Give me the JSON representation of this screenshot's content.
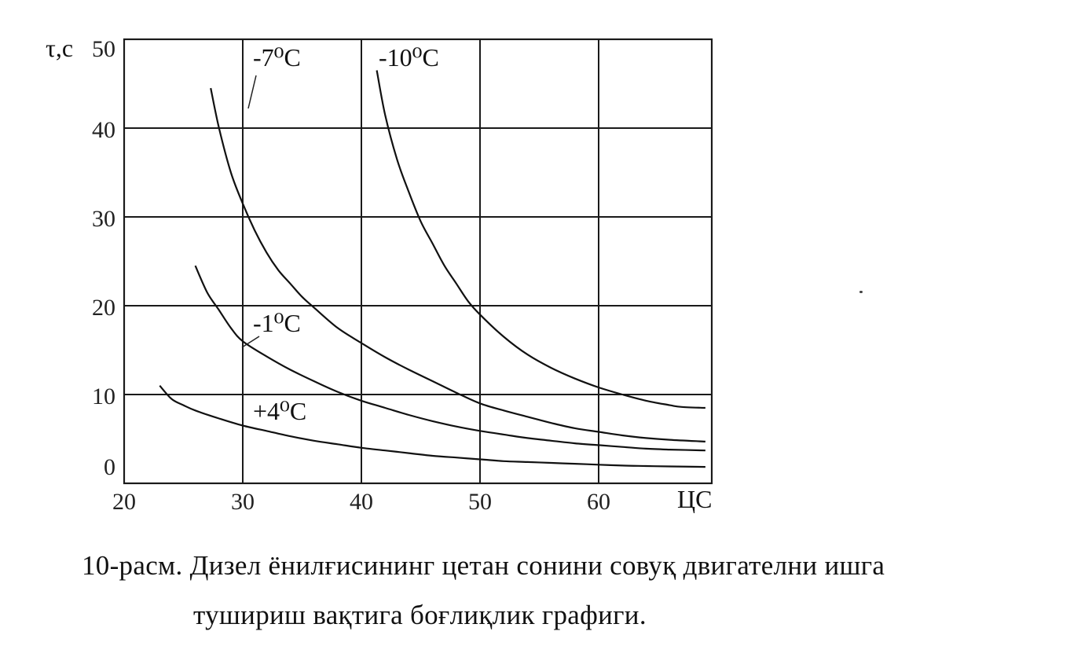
{
  "chart_data": {
    "type": "line",
    "ylabel": "τ,с",
    "xlabel": "ЦС",
    "xlim": [
      20,
      69
    ],
    "ylim": [
      0,
      50
    ],
    "x_ticks": [
      "20",
      "30",
      "40",
      "50",
      "60"
    ],
    "y_ticks": [
      "0",
      "10",
      "20",
      "30",
      "40",
      "50"
    ],
    "grid": true,
    "series": [
      {
        "name": "-10⁰С",
        "x": [
          41.3,
          42,
          43,
          44,
          45,
          46,
          47,
          48,
          49,
          50,
          52,
          54,
          56,
          58,
          60,
          62,
          64,
          66,
          67,
          69
        ],
        "y": [
          46.5,
          41.5,
          36.5,
          32.8,
          29.5,
          27,
          24.5,
          22.5,
          20.5,
          19,
          16.5,
          14.5,
          13,
          11.8,
          10.8,
          10,
          9.3,
          8.8,
          8.6,
          8.5
        ]
      },
      {
        "name": "-7⁰С",
        "x": [
          27.3,
          28,
          29,
          30,
          31,
          32,
          33,
          34,
          35,
          36,
          38,
          40,
          42,
          44,
          46,
          48,
          50,
          52,
          54,
          56,
          58,
          60,
          62,
          64,
          66,
          69
        ],
        "y": [
          44.5,
          40,
          35,
          31.5,
          28.5,
          26,
          24,
          22.5,
          21,
          19.8,
          17.5,
          15.8,
          14.2,
          12.8,
          11.5,
          10.2,
          9,
          8.2,
          7.5,
          6.8,
          6.2,
          5.8,
          5.4,
          5.1,
          4.9,
          4.7
        ]
      },
      {
        "name": "-1⁰С",
        "x": [
          26,
          27,
          28,
          29,
          30,
          32,
          34,
          36,
          38,
          40,
          42,
          44,
          46,
          48,
          50,
          52,
          54,
          56,
          58,
          60,
          62,
          64,
          66,
          69
        ],
        "y": [
          24.5,
          21.5,
          19.5,
          17.5,
          16,
          14.3,
          12.8,
          11.5,
          10.3,
          9.3,
          8.5,
          7.7,
          7,
          6.4,
          5.9,
          5.5,
          5.1,
          4.8,
          4.5,
          4.3,
          4.1,
          3.9,
          3.8,
          3.7
        ]
      },
      {
        "name": "+4⁰С",
        "x": [
          23,
          24,
          25,
          26,
          28,
          30,
          32,
          34,
          36,
          38,
          40,
          42,
          44,
          46,
          48,
          50,
          52,
          54,
          56,
          58,
          60,
          62,
          64,
          66,
          69
        ],
        "y": [
          11,
          9.5,
          8.8,
          8.2,
          7.3,
          6.5,
          5.9,
          5.3,
          4.8,
          4.4,
          4,
          3.7,
          3.4,
          3.1,
          2.9,
          2.7,
          2.5,
          2.4,
          2.3,
          2.2,
          2.1,
          2,
          1.95,
          1.9,
          1.85
        ]
      }
    ]
  },
  "caption": {
    "line1": "10-расм. Дизел ёнилғисининг цетан сонини совуқ двигателни ишга",
    "line2": "тушириш вақтига боғлиқлик графиги."
  }
}
